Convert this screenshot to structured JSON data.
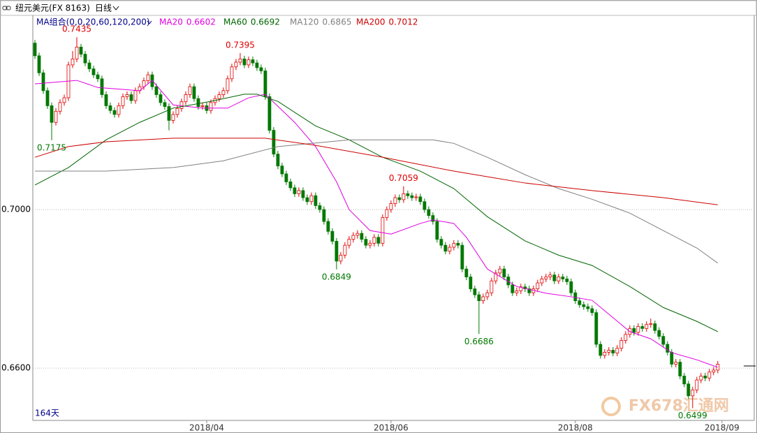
{
  "chart_data": {
    "type": "candlestick",
    "title": "纽元美元(FX 8163)",
    "period": "日线",
    "indicator": "MA组合(0,0,20,60,120,200)",
    "bar_count_label": "164天",
    "watermark": "FX678汇通网",
    "up_color": "#e00000",
    "down_color": "#007800",
    "ylim": [
      0.6468,
      0.749
    ],
    "yticks": [
      {
        "value": 0.7,
        "label": "0.7000"
      },
      {
        "value": 0.66,
        "label": "0.6600"
      }
    ],
    "grid": true,
    "xlim": [
      -0.5,
      171.7
    ],
    "xticks": [
      {
        "value": 41,
        "label": "2018/04"
      },
      {
        "value": 85,
        "label": "2018/06"
      },
      {
        "value": 129,
        "label": "2018/08"
      },
      {
        "value": 164,
        "label": "2018/09"
      }
    ],
    "candles": [
      [
        0.742,
        0.7428,
        0.738,
        0.7388
      ],
      [
        0.7388,
        0.7396,
        0.7337,
        0.7345
      ],
      [
        0.7345,
        0.7353,
        0.7292,
        0.73
      ],
      [
        0.73,
        0.7308,
        0.7254,
        0.7262
      ],
      [
        0.7262,
        0.727,
        0.7175,
        0.722
      ],
      [
        0.722,
        0.7256,
        0.7212,
        0.7248
      ],
      [
        0.7248,
        0.7278,
        0.724,
        0.727
      ],
      [
        0.727,
        0.729,
        0.7262,
        0.7282
      ],
      [
        0.7282,
        0.7373,
        0.7274,
        0.7365
      ],
      [
        0.7365,
        0.74,
        0.7357,
        0.738
      ],
      [
        0.738,
        0.7435,
        0.7372,
        0.741
      ],
      [
        0.741,
        0.7418,
        0.7384,
        0.7392
      ],
      [
        0.7392,
        0.74,
        0.7362,
        0.737
      ],
      [
        0.737,
        0.7378,
        0.7347,
        0.7355
      ],
      [
        0.7355,
        0.7363,
        0.7332,
        0.734
      ],
      [
        0.734,
        0.7348,
        0.7322,
        0.733
      ],
      [
        0.733,
        0.7338,
        0.7282,
        0.729
      ],
      [
        0.729,
        0.7298,
        0.7254,
        0.7262
      ],
      [
        0.7262,
        0.727,
        0.7242,
        0.725
      ],
      [
        0.725,
        0.7258,
        0.7232,
        0.724
      ],
      [
        0.724,
        0.727,
        0.7232,
        0.7262
      ],
      [
        0.7262,
        0.7293,
        0.7254,
        0.7285
      ],
      [
        0.7285,
        0.7298,
        0.7277,
        0.729
      ],
      [
        0.729,
        0.7298,
        0.7267,
        0.7275
      ],
      [
        0.7275,
        0.7308,
        0.7267,
        0.73
      ],
      [
        0.73,
        0.7318,
        0.7292,
        0.731
      ],
      [
        0.731,
        0.7333,
        0.7302,
        0.7325
      ],
      [
        0.7325,
        0.7348,
        0.7317,
        0.734
      ],
      [
        0.734,
        0.7348,
        0.7302,
        0.731
      ],
      [
        0.731,
        0.7318,
        0.7282,
        0.729
      ],
      [
        0.729,
        0.7298,
        0.7262,
        0.727
      ],
      [
        0.727,
        0.7278,
        0.7252,
        0.726
      ],
      [
        0.726,
        0.7268,
        0.72,
        0.7225
      ],
      [
        0.7225,
        0.7248,
        0.7217,
        0.724
      ],
      [
        0.724,
        0.7263,
        0.7232,
        0.7255
      ],
      [
        0.7255,
        0.728,
        0.7247,
        0.7272
      ],
      [
        0.7272,
        0.7298,
        0.7264,
        0.729
      ],
      [
        0.729,
        0.7318,
        0.7282,
        0.731
      ],
      [
        0.731,
        0.7318,
        0.7272,
        0.728
      ],
      [
        0.728,
        0.7288,
        0.7252,
        0.726
      ],
      [
        0.726,
        0.727,
        0.7252,
        0.7262
      ],
      [
        0.7262,
        0.727,
        0.7242,
        0.725
      ],
      [
        0.725,
        0.7278,
        0.7242,
        0.727
      ],
      [
        0.727,
        0.7288,
        0.7262,
        0.728
      ],
      [
        0.728,
        0.7298,
        0.7272,
        0.729
      ],
      [
        0.729,
        0.7308,
        0.7282,
        0.73
      ],
      [
        0.73,
        0.7338,
        0.7292,
        0.733
      ],
      [
        0.733,
        0.7368,
        0.7322,
        0.736
      ],
      [
        0.736,
        0.738,
        0.7352,
        0.7372
      ],
      [
        0.7372,
        0.7395,
        0.7364,
        0.738
      ],
      [
        0.738,
        0.7388,
        0.7357,
        0.7365
      ],
      [
        0.7365,
        0.7386,
        0.7357,
        0.7378
      ],
      [
        0.7378,
        0.7386,
        0.7362,
        0.737
      ],
      [
        0.737,
        0.7378,
        0.735,
        0.7358
      ],
      [
        0.7358,
        0.7366,
        0.7342,
        0.735
      ],
      [
        0.735,
        0.7358,
        0.7277,
        0.7285
      ],
      [
        0.7285,
        0.7293,
        0.7192,
        0.72
      ],
      [
        0.72,
        0.7208,
        0.7132,
        0.714
      ],
      [
        0.714,
        0.7148,
        0.7102,
        0.711
      ],
      [
        0.711,
        0.7118,
        0.7082,
        0.709
      ],
      [
        0.709,
        0.7098,
        0.7062,
        0.707
      ],
      [
        0.707,
        0.7078,
        0.7047,
        0.7055
      ],
      [
        0.7055,
        0.7063,
        0.7032,
        0.704
      ],
      [
        0.704,
        0.7056,
        0.7032,
        0.7048
      ],
      [
        0.7048,
        0.7056,
        0.7022,
        0.703
      ],
      [
        0.703,
        0.7038,
        0.7012,
        0.702
      ],
      [
        0.702,
        0.7043,
        0.7012,
        0.7035
      ],
      [
        0.7035,
        0.7043,
        0.7002,
        0.701
      ],
      [
        0.701,
        0.7018,
        0.6992,
        0.7
      ],
      [
        0.7,
        0.7008,
        0.6962,
        0.697
      ],
      [
        0.697,
        0.6978,
        0.6937,
        0.6945
      ],
      [
        0.6945,
        0.6953,
        0.6912,
        0.692
      ],
      [
        0.692,
        0.6928,
        0.6849,
        0.687
      ],
      [
        0.687,
        0.6893,
        0.6862,
        0.6885
      ],
      [
        0.6885,
        0.6918,
        0.6877,
        0.691
      ],
      [
        0.691,
        0.6933,
        0.6902,
        0.6925
      ],
      [
        0.6925,
        0.6943,
        0.6917,
        0.6935
      ],
      [
        0.6935,
        0.6948,
        0.6927,
        0.694
      ],
      [
        0.694,
        0.6948,
        0.6917,
        0.6925
      ],
      [
        0.6925,
        0.6933,
        0.6902,
        0.691
      ],
      [
        0.691,
        0.6923,
        0.6902,
        0.6915
      ],
      [
        0.6915,
        0.6938,
        0.6907,
        0.693
      ],
      [
        0.693,
        0.6938,
        0.6907,
        0.6915
      ],
      [
        0.6915,
        0.6988,
        0.6907,
        0.698
      ],
      [
        0.698,
        0.7008,
        0.6972,
        0.7
      ],
      [
        0.7,
        0.7023,
        0.6992,
        0.7015
      ],
      [
        0.7015,
        0.7038,
        0.7007,
        0.703
      ],
      [
        0.703,
        0.7038,
        0.7017,
        0.7025
      ],
      [
        0.7025,
        0.7059,
        0.7017,
        0.704
      ],
      [
        0.704,
        0.7048,
        0.7027,
        0.7035
      ],
      [
        0.7035,
        0.7043,
        0.7022,
        0.703
      ],
      [
        0.703,
        0.704,
        0.7022,
        0.7032
      ],
      [
        0.7032,
        0.704,
        0.7012,
        0.702
      ],
      [
        0.702,
        0.7028,
        0.6992,
        0.7
      ],
      [
        0.7,
        0.7008,
        0.6977,
        0.6985
      ],
      [
        0.6985,
        0.6993,
        0.6962,
        0.697
      ],
      [
        0.697,
        0.6978,
        0.6917,
        0.6925
      ],
      [
        0.6925,
        0.6933,
        0.6902,
        0.691
      ],
      [
        0.691,
        0.6918,
        0.6887,
        0.6895
      ],
      [
        0.6895,
        0.6913,
        0.6887,
        0.6905
      ],
      [
        0.6905,
        0.6923,
        0.6897,
        0.6915
      ],
      [
        0.6915,
        0.6923,
        0.6902,
        0.691
      ],
      [
        0.691,
        0.6918,
        0.6842,
        0.685
      ],
      [
        0.685,
        0.6858,
        0.6822,
        0.683
      ],
      [
        0.683,
        0.6838,
        0.6792,
        0.68
      ],
      [
        0.68,
        0.6808,
        0.6777,
        0.6785
      ],
      [
        0.6785,
        0.6793,
        0.6686,
        0.677
      ],
      [
        0.677,
        0.6788,
        0.6762,
        0.678
      ],
      [
        0.678,
        0.6798,
        0.6772,
        0.679
      ],
      [
        0.679,
        0.6828,
        0.6782,
        0.682
      ],
      [
        0.682,
        0.6848,
        0.6812,
        0.684
      ],
      [
        0.684,
        0.6858,
        0.6832,
        0.685
      ],
      [
        0.685,
        0.6858,
        0.6822,
        0.683
      ],
      [
        0.683,
        0.6838,
        0.6802,
        0.681
      ],
      [
        0.681,
        0.6818,
        0.6782,
        0.679
      ],
      [
        0.679,
        0.6803,
        0.6782,
        0.6795
      ],
      [
        0.6795,
        0.6813,
        0.6787,
        0.6805
      ],
      [
        0.6805,
        0.6813,
        0.6792,
        0.68
      ],
      [
        0.68,
        0.6808,
        0.6782,
        0.679
      ],
      [
        0.679,
        0.6808,
        0.6782,
        0.68
      ],
      [
        0.68,
        0.6823,
        0.6792,
        0.6815
      ],
      [
        0.6815,
        0.6833,
        0.6807,
        0.6825
      ],
      [
        0.6825,
        0.6838,
        0.6817,
        0.683
      ],
      [
        0.683,
        0.6843,
        0.6822,
        0.6835
      ],
      [
        0.6835,
        0.6843,
        0.6812,
        0.682
      ],
      [
        0.682,
        0.6838,
        0.6812,
        0.683
      ],
      [
        0.683,
        0.6838,
        0.6817,
        0.6825
      ],
      [
        0.6825,
        0.6833,
        0.681,
        0.6818
      ],
      [
        0.6818,
        0.6826,
        0.6782,
        0.679
      ],
      [
        0.679,
        0.6798,
        0.6762,
        0.677
      ],
      [
        0.677,
        0.6778,
        0.6752,
        0.676
      ],
      [
        0.676,
        0.6768,
        0.6747,
        0.6755
      ],
      [
        0.6755,
        0.6763,
        0.6742,
        0.675
      ],
      [
        0.675,
        0.6758,
        0.6732,
        0.674
      ],
      [
        0.674,
        0.6748,
        0.6652,
        0.666
      ],
      [
        0.666,
        0.6668,
        0.6624,
        0.6632
      ],
      [
        0.6632,
        0.6648,
        0.6624,
        0.664
      ],
      [
        0.664,
        0.6653,
        0.6632,
        0.6645
      ],
      [
        0.6645,
        0.6653,
        0.663,
        0.6638
      ],
      [
        0.6638,
        0.6658,
        0.663,
        0.665
      ],
      [
        0.665,
        0.6678,
        0.6642,
        0.667
      ],
      [
        0.667,
        0.6693,
        0.6662,
        0.6685
      ],
      [
        0.6685,
        0.6708,
        0.6677,
        0.67
      ],
      [
        0.67,
        0.6708,
        0.6682,
        0.669
      ],
      [
        0.669,
        0.6713,
        0.6682,
        0.6705
      ],
      [
        0.6705,
        0.6713,
        0.6692,
        0.67
      ],
      [
        0.67,
        0.6718,
        0.6692,
        0.671
      ],
      [
        0.671,
        0.6725,
        0.6702,
        0.6712
      ],
      [
        0.6712,
        0.672,
        0.6687,
        0.6695
      ],
      [
        0.6695,
        0.6703,
        0.6672,
        0.668
      ],
      [
        0.668,
        0.6688,
        0.6652,
        0.666
      ],
      [
        0.666,
        0.6668,
        0.6632,
        0.664
      ],
      [
        0.664,
        0.6648,
        0.6602,
        0.661
      ],
      [
        0.661,
        0.6623,
        0.6602,
        0.6615
      ],
      [
        0.6615,
        0.6623,
        0.6572,
        0.658
      ],
      [
        0.658,
        0.6588,
        0.6552,
        0.656
      ],
      [
        0.656,
        0.6568,
        0.6522,
        0.653
      ],
      [
        0.653,
        0.6553,
        0.6499,
        0.6545
      ],
      [
        0.6545,
        0.6578,
        0.6537,
        0.657
      ],
      [
        0.657,
        0.6588,
        0.6562,
        0.658
      ],
      [
        0.658,
        0.6588,
        0.6567,
        0.6575
      ],
      [
        0.6575,
        0.6598,
        0.6567,
        0.659
      ],
      [
        0.659,
        0.6603,
        0.6582,
        0.6595
      ],
      [
        0.6595,
        0.6618,
        0.6587,
        0.661
      ]
    ],
    "series": [
      {
        "name": "MA20",
        "color": "#e000e0",
        "x": [
          0,
          10,
          15,
          25,
          28,
          33,
          40,
          46,
          51,
          55,
          62,
          67,
          72,
          75,
          80,
          85,
          92,
          95,
          100,
          103,
          108,
          115,
          122,
          128,
          133,
          137,
          142,
          147,
          152,
          158,
          163
        ],
        "values": [
          0.7317,
          0.7326,
          0.7308,
          0.73,
          0.7326,
          0.7264,
          0.7256,
          0.7256,
          0.7282,
          0.7291,
          0.722,
          0.7159,
          0.707,
          0.7,
          0.6947,
          0.6938,
          0.6965,
          0.6974,
          0.6965,
          0.693,
          0.685,
          0.6806,
          0.6789,
          0.678,
          0.6771,
          0.6736,
          0.6692,
          0.6674,
          0.6639,
          0.6621,
          0.6602
        ]
      },
      {
        "name": "MA60",
        "color": "#006400",
        "x": [
          0,
          8,
          17,
          25,
          33,
          42,
          50,
          53,
          58,
          67,
          75,
          83,
          92,
          100,
          108,
          117,
          125,
          133,
          142,
          150,
          158,
          163
        ],
        "values": [
          0.7062,
          0.7106,
          0.7176,
          0.722,
          0.7256,
          0.7273,
          0.7291,
          0.7291,
          0.7273,
          0.7211,
          0.7176,
          0.7132,
          0.7097,
          0.7053,
          0.6982,
          0.6921,
          0.6885,
          0.6859,
          0.6806,
          0.6753,
          0.6718,
          0.6692
        ]
      },
      {
        "name": "MA120",
        "color": "#808080",
        "x": [
          0,
          17,
          33,
          45,
          58,
          75,
          95,
          100,
          108,
          117,
          125,
          133,
          142,
          150,
          158,
          163
        ],
        "values": [
          0.7097,
          0.7097,
          0.7106,
          0.7123,
          0.7159,
          0.7176,
          0.7176,
          0.7167,
          0.7132,
          0.7088,
          0.7053,
          0.7026,
          0.6991,
          0.6947,
          0.6903,
          0.6865
        ]
      },
      {
        "name": "MA200",
        "color": "#cc0000",
        "x": [
          0,
          8,
          17,
          33,
          55,
          67,
          83,
          100,
          117,
          133,
          150,
          163
        ],
        "values": [
          0.7132,
          0.7159,
          0.7171,
          0.718,
          0.718,
          0.7162,
          0.7132,
          0.7097,
          0.7067,
          0.7048,
          0.703,
          0.7012
        ]
      }
    ]
  }
}
